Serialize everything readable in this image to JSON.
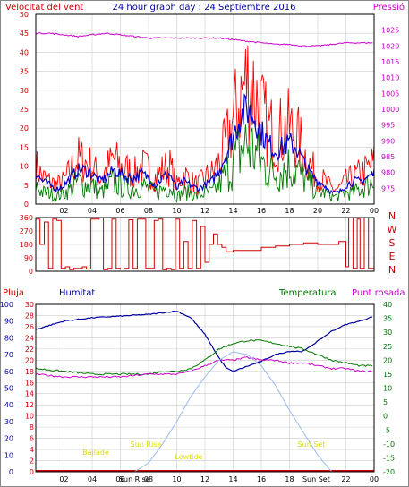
{
  "colors": {
    "wind": "#cc0000",
    "gust": "#ff0000",
    "avg": "#0000cc",
    "pressure": "#cc00cc",
    "direction": "#cc0000",
    "rain": "#cc0000",
    "humidity": "#00009c",
    "temperature": "#007700",
    "dewpoint": "#cc00cc",
    "sun": "#99bbee",
    "sun_label": "#dddd00",
    "grid": "#cccccc",
    "frame": "#000000",
    "title": "#000099"
  },
  "chart_data": [
    {
      "id": "wind",
      "type": "line",
      "title": "24 hour graph day : 24 Septiembre 2016",
      "left_label": "Velocitat del vent",
      "right_label": "Pressió",
      "x_ticks": [
        "02",
        "04",
        "06",
        "08",
        "10",
        "12",
        "14",
        "16",
        "18",
        "20",
        "22",
        "00"
      ],
      "ylim_left": [
        0,
        50
      ],
      "y_ticks_left": [
        "0",
        "5",
        "10",
        "15",
        "20",
        "25",
        "30",
        "35",
        "40",
        "45",
        "50"
      ],
      "ylim_right": [
        970,
        1030
      ],
      "y_ticks_right": [
        "975",
        "980",
        "985",
        "990",
        "995",
        "1000",
        "1005",
        "1010",
        "1015",
        "1020",
        "1025"
      ],
      "grid": true,
      "series": [
        {
          "role": "gust",
          "x": [
            0,
            0.5,
            1,
            1.5,
            2,
            2.5,
            3,
            3.5,
            4,
            4.5,
            5,
            5.5,
            6,
            6.5,
            7,
            7.5,
            8,
            8.5,
            9,
            9.5,
            10,
            10.5,
            11,
            11.5,
            12,
            12.5,
            13,
            13.5,
            14,
            14.5,
            15,
            15.5,
            16,
            16.5,
            17,
            17.5,
            18,
            18.5,
            19,
            19.5,
            20,
            20.5,
            21,
            21.5,
            22,
            22.5,
            23,
            23.5,
            24
          ],
          "values": [
            10,
            7,
            6,
            5,
            6,
            9,
            12,
            11,
            10,
            7,
            9,
            12,
            10,
            9,
            8,
            10,
            9,
            7,
            9,
            10,
            5,
            8,
            6,
            5,
            7,
            8,
            11,
            16,
            22,
            28,
            33,
            30,
            24,
            20,
            18,
            19,
            20,
            18,
            14,
            10,
            7,
            6,
            4,
            4,
            6,
            7,
            8,
            9,
            11
          ]
        },
        {
          "role": "wind",
          "x": [
            0,
            0.5,
            1,
            1.5,
            2,
            2.5,
            3,
            3.5,
            4,
            4.5,
            5,
            5.5,
            6,
            6.5,
            7,
            7.5,
            8,
            8.5,
            9,
            9.5,
            10,
            10.5,
            11,
            11.5,
            12,
            12.5,
            13,
            13.5,
            14,
            14.5,
            15,
            15.5,
            16,
            16.5,
            17,
            17.5,
            18,
            18.5,
            19,
            19.5,
            20,
            20.5,
            21,
            21.5,
            22,
            22.5,
            23,
            23.5,
            24
          ],
          "values": [
            5,
            3,
            3,
            2,
            3,
            4,
            6,
            5,
            5,
            3,
            4,
            6,
            5,
            4,
            4,
            5,
            4,
            3,
            4,
            5,
            2,
            3,
            3,
            2,
            3,
            3,
            5,
            8,
            11,
            14,
            16,
            14,
            11,
            9,
            8,
            9,
            10,
            9,
            7,
            5,
            3,
            3,
            2,
            2,
            3,
            3,
            4,
            5,
            6
          ]
        },
        {
          "role": "avg",
          "x": [
            0,
            0.5,
            1,
            1.5,
            2,
            2.5,
            3,
            3.5,
            4,
            4.5,
            5,
            5.5,
            6,
            6.5,
            7,
            7.5,
            8,
            8.5,
            9,
            9.5,
            10,
            10.5,
            11,
            11.5,
            12,
            12.5,
            13,
            13.5,
            14,
            14.5,
            15,
            15.5,
            16,
            16.5,
            17,
            17.5,
            18,
            18.5,
            19,
            19.5,
            20,
            20.5,
            21,
            21.5,
            22,
            22.5,
            23,
            23.5,
            24
          ],
          "values": [
            8,
            6,
            5,
            4,
            5,
            7,
            9,
            9,
            8,
            6,
            7,
            9,
            8,
            7,
            7,
            8,
            7,
            5,
            7,
            8,
            4,
            6,
            5,
            4,
            5,
            6,
            9,
            13,
            18,
            23,
            25,
            23,
            19,
            16,
            14,
            15,
            16,
            15,
            11,
            8,
            6,
            5,
            3,
            3,
            5,
            6,
            6,
            7,
            8
          ]
        },
        {
          "role": "pressure",
          "axis": "right",
          "x": [
            0,
            1,
            2,
            3,
            4,
            5,
            6,
            7,
            8,
            9,
            10,
            11,
            12,
            13,
            14,
            15,
            16,
            17,
            18,
            19,
            20,
            21,
            22,
            23,
            24
          ],
          "values": [
            1024,
            1024,
            1023.5,
            1023,
            1023.5,
            1024,
            1023.5,
            1023,
            1022.5,
            1022.5,
            1022.5,
            1022.5,
            1022.5,
            1022.5,
            1022,
            1021.5,
            1021,
            1020.5,
            1020.5,
            1020,
            1020,
            1020.5,
            1021,
            1021,
            1021
          ]
        }
      ]
    },
    {
      "id": "direction",
      "type": "line",
      "right_labels": [
        "N",
        "W",
        "S",
        "E",
        "N"
      ],
      "ylim": [
        0,
        360
      ],
      "y_ticks": [
        "0",
        "90",
        "180",
        "270",
        "360"
      ],
      "grid": true,
      "series": [
        {
          "role": "direction",
          "x": [
            0,
            0.3,
            0.6,
            0.9,
            1.2,
            1.5,
            1.8,
            2.1,
            2.4,
            2.7,
            3.0,
            3.3,
            3.6,
            3.9,
            4.2,
            4.5,
            4.8,
            5.1,
            5.4,
            5.7,
            6.0,
            6.3,
            6.6,
            6.9,
            7.2,
            7.5,
            7.8,
            8.1,
            8.4,
            8.7,
            9.0,
            9.3,
            9.6,
            9.9,
            10.2,
            10.5,
            10.8,
            11.1,
            11.4,
            11.7,
            12.0,
            12.3,
            12.6,
            12.9,
            13.2,
            13.5,
            14,
            15,
            16,
            17,
            18,
            19,
            20,
            21,
            21.5,
            22,
            22.2,
            22.5,
            22.8,
            23,
            23.3,
            23.6,
            24
          ],
          "values": [
            350,
            180,
            330,
            20,
            350,
            340,
            20,
            30,
            10,
            20,
            20,
            30,
            15,
            350,
            350,
            360,
            10,
            20,
            350,
            20,
            15,
            20,
            345,
            20,
            350,
            350,
            20,
            20,
            340,
            350,
            10,
            20,
            10,
            350,
            20,
            200,
            20,
            340,
            20,
            300,
            60,
            180,
            250,
            180,
            160,
            130,
            140,
            140,
            160,
            170,
            180,
            190,
            180,
            180,
            200,
            30,
            360,
            20,
            350,
            20,
            360,
            20,
            20
          ]
        }
      ]
    },
    {
      "id": "climate",
      "type": "line",
      "labels": {
        "rain": "Pluja",
        "humidity": "Humitat",
        "temperature": "Temperatura",
        "dewpoint": "Punt rosada"
      },
      "x_ticks": [
        "02",
        "04",
        "06",
        "08",
        "Sun Rise",
        "10",
        "12",
        "14",
        "16",
        "18",
        "Sun Set",
        "22",
        "00"
      ],
      "annotations": [
        "Sun Rise",
        "Sun Set",
        "Bajlade",
        "Lowtide"
      ],
      "ylim_rain": [
        0,
        30
      ],
      "y_ticks_rain": [
        "0",
        "2",
        "4",
        "6",
        "8",
        "10",
        "12",
        "14",
        "16",
        "18",
        "20",
        "22",
        "24",
        "26",
        "28",
        "30"
      ],
      "ylim_humidity": [
        0,
        100
      ],
      "y_ticks_humidity": [
        "0",
        "10",
        "20",
        "30",
        "40",
        "50",
        "60",
        "70",
        "80",
        "90",
        "100"
      ],
      "ylim_temp": [
        -20,
        40
      ],
      "y_ticks_temp": [
        "-20",
        "-15",
        "-10",
        "-5",
        "0",
        "5",
        "10",
        "15",
        "20",
        "25",
        "30",
        "35",
        "40"
      ],
      "grid": true,
      "series": [
        {
          "role": "humidity",
          "name": "Humitat",
          "x": [
            0,
            2,
            4,
            6,
            8,
            9,
            10,
            11,
            12,
            13,
            13.5,
            14,
            15,
            16,
            17,
            18,
            19,
            20,
            21,
            22,
            23,
            24
          ],
          "values": [
            85,
            90,
            92,
            93,
            94,
            95,
            96,
            92,
            82,
            68,
            62,
            60,
            63,
            66,
            70,
            72,
            72,
            78,
            84,
            88,
            90,
            93
          ]
        },
        {
          "role": "temperature",
          "name": "Temperatura",
          "x": [
            0,
            2,
            4,
            6,
            8,
            9,
            10,
            11,
            12,
            13,
            14,
            15,
            16,
            17,
            18,
            19,
            20,
            21,
            22,
            23,
            24
          ],
          "values": [
            17,
            16,
            15,
            15,
            15,
            16,
            16,
            17,
            20,
            24,
            26,
            27,
            27,
            26,
            25,
            24,
            22,
            20,
            19,
            18,
            18
          ]
        },
        {
          "role": "dewpoint",
          "name": "Punt rosada",
          "x": [
            0,
            2,
            4,
            6,
            8,
            9,
            10,
            11,
            12,
            13,
            14,
            15,
            16,
            17,
            18,
            19,
            20,
            21,
            22,
            23,
            24
          ],
          "values": [
            15,
            14,
            14,
            14,
            15,
            15,
            15,
            16,
            18,
            20,
            20,
            21,
            20,
            20,
            19,
            19,
            18,
            17,
            17,
            16,
            16
          ]
        },
        {
          "role": "rain",
          "name": "Pluja",
          "x": [
            0,
            24
          ],
          "values": [
            0,
            0
          ]
        },
        {
          "role": "sun",
          "x": [
            7,
            8,
            9,
            10,
            11,
            12,
            13,
            14,
            15,
            16,
            17,
            18,
            19,
            20,
            21
          ],
          "values": [
            0,
            1.6,
            5,
            9,
            13.5,
            17,
            20,
            21.5,
            21,
            19,
            15.5,
            11,
            7,
            3,
            0
          ]
        }
      ]
    }
  ]
}
